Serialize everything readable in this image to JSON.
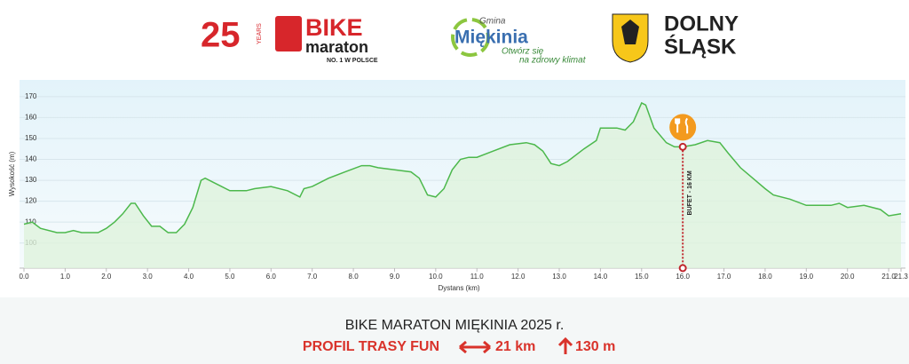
{
  "header": {
    "logo1_number": "25",
    "logo1_years": "YEARS",
    "logo1_bike": "BIKE",
    "logo1_maraton": "maraton",
    "logo1_tagline": "NO. 1 W POLSCE",
    "logo2_gmina": "Gmina",
    "logo2_name": "Miękinia",
    "logo2_slogan1": "Otwórz się",
    "logo2_slogan2": "na zdrowy klimat",
    "logo3_line1": "DOLNY",
    "logo3_line2": "ŚLĄSK"
  },
  "chart_data": {
    "type": "area",
    "xlabel": "Dystans (km)",
    "ylabel": "Wysokość (m)",
    "x": [
      0.0,
      0.2,
      0.4,
      0.8,
      1.0,
      1.2,
      1.4,
      1.8,
      2.0,
      2.2,
      2.4,
      2.6,
      2.7,
      2.9,
      3.1,
      3.3,
      3.5,
      3.7,
      3.9,
      4.1,
      4.3,
      4.4,
      4.6,
      4.8,
      5.0,
      5.4,
      5.6,
      6.0,
      6.4,
      6.7,
      6.8,
      7.0,
      7.4,
      7.8,
      8.2,
      8.4,
      8.6,
      9.0,
      9.4,
      9.6,
      9.8,
      10.0,
      10.2,
      10.4,
      10.6,
      10.8,
      11.0,
      11.4,
      11.8,
      12.2,
      12.4,
      12.6,
      12.8,
      13.0,
      13.2,
      13.6,
      13.9,
      14.0,
      14.4,
      14.6,
      14.8,
      15.0,
      15.1,
      15.3,
      15.6,
      15.8,
      16.0,
      16.3,
      16.6,
      16.9,
      17.1,
      17.4,
      17.7,
      18.0,
      18.2,
      18.6,
      19.0,
      19.6,
      19.8,
      20.0,
      20.4,
      20.8,
      21.0,
      21.3
    ],
    "values": [
      109,
      110,
      107,
      105,
      105,
      106,
      105,
      105,
      107,
      110,
      114,
      119,
      119,
      113,
      108,
      108,
      105,
      105,
      109,
      117,
      130,
      131,
      129,
      127,
      125,
      125,
      126,
      127,
      125,
      122,
      126,
      127,
      131,
      134,
      137,
      137,
      136,
      135,
      134,
      131,
      123,
      122,
      126,
      135,
      140,
      141,
      141,
      144,
      147,
      148,
      147,
      144,
      138,
      137,
      139,
      145,
      149,
      155,
      155,
      154,
      158,
      167,
      166,
      155,
      148,
      146,
      146,
      147,
      149,
      148,
      143,
      136,
      131,
      126,
      123,
      121,
      118,
      118,
      119,
      117,
      118,
      116,
      113,
      114
    ],
    "color": "#4cb84c",
    "xlim": [
      0,
      21.3
    ],
    "ylim": [
      88,
      178
    ],
    "xticks": [
      {
        "value": 0,
        "label": "0.0"
      },
      {
        "value": 1,
        "label": "1.0"
      },
      {
        "value": 2,
        "label": "2.0"
      },
      {
        "value": 3,
        "label": "3.0"
      },
      {
        "value": 4,
        "label": "4.0"
      },
      {
        "value": 5,
        "label": "5.0"
      },
      {
        "value": 6,
        "label": "6.0"
      },
      {
        "value": 7,
        "label": "7.0"
      },
      {
        "value": 8,
        "label": "8.0"
      },
      {
        "value": 9,
        "label": "9.0"
      },
      {
        "value": 10,
        "label": "10.0"
      },
      {
        "value": 11,
        "label": "11.0"
      },
      {
        "value": 12,
        "label": "12.0"
      },
      {
        "value": 13,
        "label": "13.0"
      },
      {
        "value": 14,
        "label": "14.0"
      },
      {
        "value": 15,
        "label": "15.0"
      },
      {
        "value": 16,
        "label": "16.0"
      },
      {
        "value": 17,
        "label": "17.0"
      },
      {
        "value": 18,
        "label": "18.0"
      },
      {
        "value": 19,
        "label": "19.0"
      },
      {
        "value": 20,
        "label": "20.0"
      },
      {
        "value": 21,
        "label": "21.0"
      },
      21.3
    ],
    "yticks": [
      100,
      110,
      120,
      130,
      140,
      150,
      160,
      170
    ],
    "grid": true,
    "annotation": {
      "text": "BUFET - 16 KM",
      "x": 16,
      "y": 146
    }
  },
  "footer": {
    "title": "BIKE MARATON MIĘKINIA 2025 r.",
    "subtitle": "PROFIL TRASY FUN",
    "distance": "21 km",
    "climb": "130 m"
  }
}
